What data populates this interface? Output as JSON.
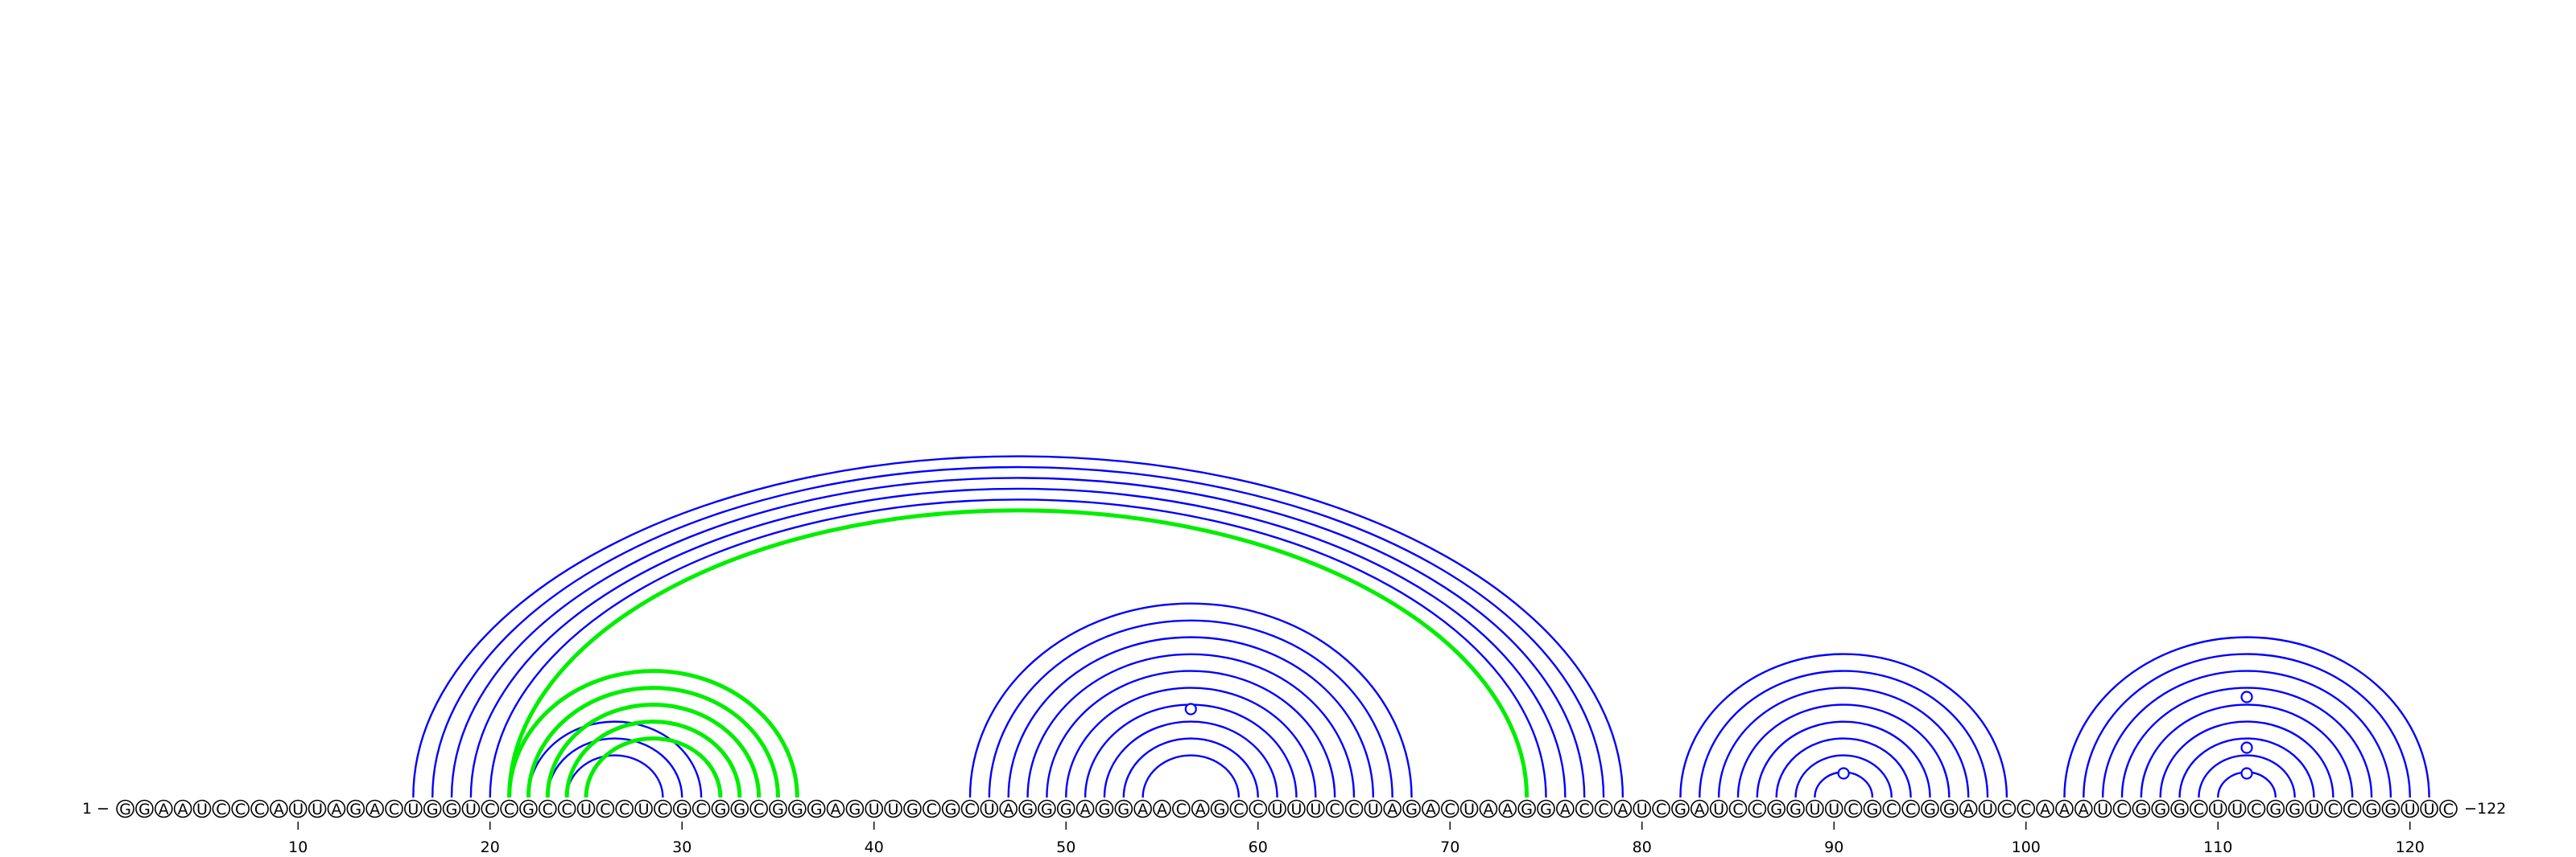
{
  "sequence": "GGAAUCCCAUUAGACUGGUCCGCCUCCUCGCGGCGGGAGUUGCGCUAGGGAGGAACAGCCUUUCCUAGACUAAGGACCAUCGAUCCGGUUCGCCGGAUCCAAAUCGGGCUUCGGUCCGGUUC",
  "start_label": "1",
  "end_label": "122",
  "tick_positions": [
    10,
    20,
    30,
    40,
    50,
    60,
    70,
    80,
    90,
    100,
    110,
    120
  ],
  "colors": {
    "blue_arc": "#0000ff",
    "green_arc": "#00ee00",
    "base_outline": "#000000"
  },
  "blue_pairs": [
    [
      16,
      79
    ],
    [
      17,
      78
    ],
    [
      18,
      77
    ],
    [
      19,
      76
    ],
    [
      20,
      75
    ],
    [
      22,
      31
    ],
    [
      23,
      30
    ],
    [
      24,
      29
    ],
    [
      45,
      68
    ],
    [
      46,
      67
    ],
    [
      47,
      66
    ],
    [
      48,
      65
    ],
    [
      49,
      64
    ],
    [
      50,
      63
    ],
    [
      51,
      62
    ],
    [
      52,
      61
    ],
    [
      53,
      60
    ],
    [
      54,
      59
    ],
    [
      82,
      99
    ],
    [
      83,
      98
    ],
    [
      84,
      97
    ],
    [
      85,
      96
    ],
    [
      86,
      95
    ],
    [
      87,
      94
    ],
    [
      88,
      93
    ],
    [
      89,
      92
    ],
    [
      102,
      121
    ],
    [
      103,
      120
    ],
    [
      104,
      119
    ],
    [
      105,
      118
    ],
    [
      106,
      117
    ],
    [
      107,
      116
    ],
    [
      108,
      115
    ],
    [
      109,
      114
    ],
    [
      110,
      113
    ]
  ],
  "green_pairs": [
    [
      21,
      74
    ],
    [
      21,
      36
    ],
    [
      22,
      35
    ],
    [
      23,
      34
    ],
    [
      24,
      33
    ],
    [
      25,
      32
    ]
  ],
  "loop_markers": [
    {
      "base": 56.5,
      "height": 110
    },
    {
      "base": 90.5,
      "height": 30
    },
    {
      "base": 111.5,
      "height": 125
    },
    {
      "base": 111.5,
      "height": 62
    },
    {
      "base": 111.5,
      "height": 30
    }
  ]
}
